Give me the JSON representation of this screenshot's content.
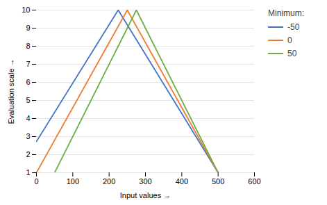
{
  "chart_data": {
    "type": "line",
    "title": "",
    "xlabel": "Input values",
    "ylabel": "Evaluation scale",
    "xlim": [
      0,
      600
    ],
    "ylim": [
      1,
      10
    ],
    "xticks": [
      0,
      100,
      200,
      300,
      400,
      500,
      600
    ],
    "yticks": [
      1,
      2,
      3,
      4,
      5,
      6,
      7,
      8,
      9,
      10
    ],
    "grid": "y",
    "legend": "right",
    "legend_title": "Minimum:",
    "series": [
      {
        "name": "-50",
        "color": "#4472c4",
        "x": [
          0,
          225,
          500
        ],
        "values": [
          2.727,
          10,
          1
        ]
      },
      {
        "name": "0",
        "color": "#ed7d31",
        "x": [
          0,
          250,
          500
        ],
        "values": [
          1,
          10,
          1
        ]
      },
      {
        "name": "50",
        "color": "#70ad47",
        "x": [
          50,
          275,
          500
        ],
        "values": [
          1,
          10,
          1
        ]
      }
    ]
  }
}
